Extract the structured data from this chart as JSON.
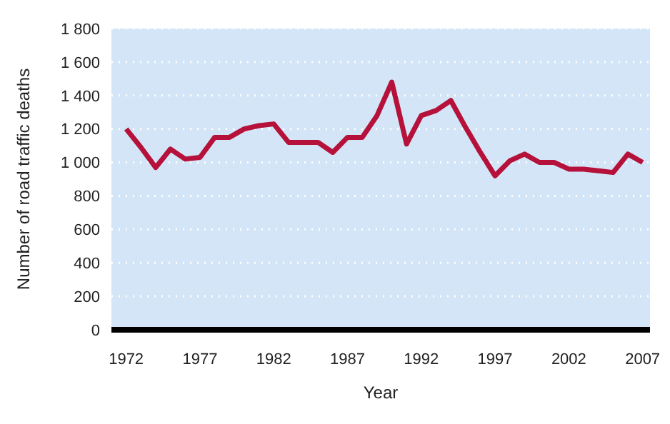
{
  "chart_data": {
    "type": "line",
    "xlabel": "Year",
    "ylabel": "Number of road traffic deaths",
    "x": [
      1972,
      1973,
      1974,
      1975,
      1976,
      1977,
      1978,
      1979,
      1980,
      1981,
      1982,
      1983,
      1984,
      1985,
      1986,
      1987,
      1988,
      1989,
      1990,
      1991,
      1992,
      1993,
      1994,
      1995,
      1996,
      1997,
      1998,
      1999,
      2000,
      2001,
      2002,
      2003,
      2004,
      2005,
      2006,
      2007
    ],
    "series": [
      {
        "color": "#b5113a",
        "values": [
          1200,
          1090,
          970,
          1080,
          1020,
          1030,
          1150,
          1150,
          1200,
          1220,
          1230,
          1120,
          1120,
          1120,
          1060,
          1150,
          1150,
          1280,
          1480,
          1110,
          1280,
          1310,
          1370,
          1210,
          1060,
          920,
          1010,
          1050,
          1000,
          1000,
          960,
          960,
          950,
          940,
          1050,
          1000
        ]
      }
    ],
    "xlim": [
      1971,
      2007.5
    ],
    "xticks": [
      1972,
      1977,
      1982,
      1987,
      1992,
      1997,
      2002,
      2007
    ],
    "ylim": [
      0,
      1800
    ],
    "yticks": [
      0,
      200,
      400,
      600,
      800,
      {
        "value": 1000,
        "label": "1 000"
      },
      {
        "value": 1200,
        "label": "1 200"
      },
      {
        "value": 1400,
        "label": "1 400"
      },
      {
        "value": 1600,
        "label": "1 600"
      },
      {
        "value": 1800,
        "label": "1 800"
      }
    ],
    "grid": "y",
    "marker": "none",
    "line_style": "solid",
    "legend": false
  }
}
